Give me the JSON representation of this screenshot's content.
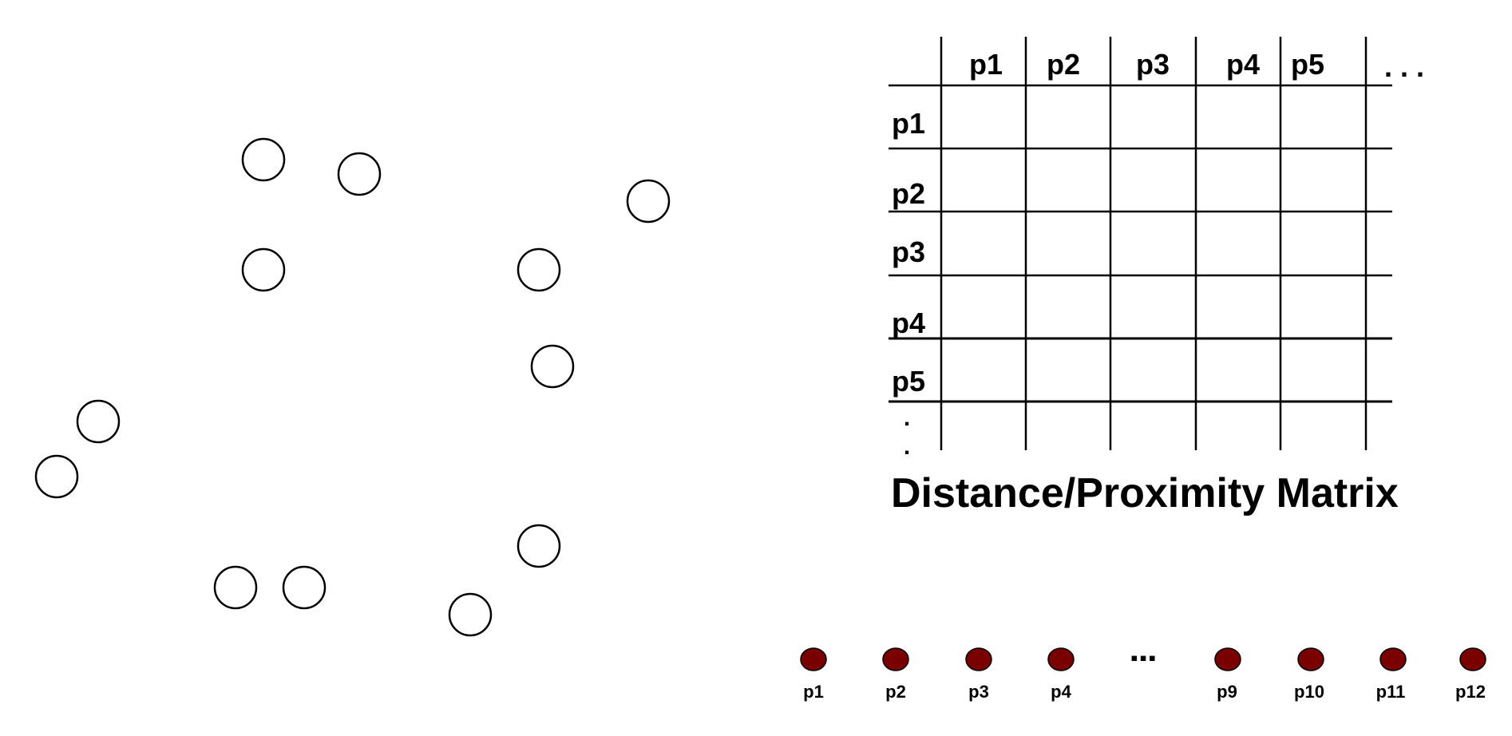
{
  "colors": {
    "point_outline": "#000000",
    "point_fill": "#ffffff",
    "line_point_fill": "#7a0000",
    "grid_line": "#000000"
  },
  "scatter": {
    "point_count": 12,
    "shape": "circle"
  },
  "matrix": {
    "title": "Distance/Proximity Matrix",
    "column_headers": [
      "p1",
      "p2",
      "p3",
      "p4",
      "p5"
    ],
    "column_ellipsis": ". . .",
    "row_headers": [
      "p1",
      "p2",
      "p3",
      "p4",
      "p5"
    ],
    "row_ellipsis_1": ".",
    "row_ellipsis_2": "."
  },
  "point_line": {
    "labels": [
      "p1",
      "p2",
      "p3",
      "p4",
      "p9",
      "p10",
      "p11",
      "p12"
    ],
    "gap_marker": "▪▪▪"
  }
}
